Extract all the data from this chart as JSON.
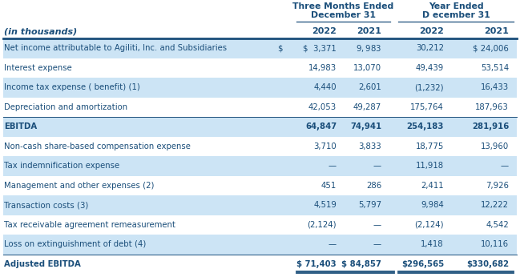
{
  "header_group1_line1": "Three Months Ended",
  "header_group1_line2": "December 31",
  "header_group2_line1": "Year Ended",
  "header_group2_line2": "D ecember 31",
  "col_headers": [
    "2022",
    "2021",
    "2022",
    "2021"
  ],
  "row_label_header": "(in thousands)",
  "rows": [
    {
      "label": "Net income attributable to Agiliti, Inc. and Subsidiaries",
      "vals": [
        "$  3,371",
        "$  9,983 $",
        "30,212",
        "$ 24,006"
      ],
      "val_special": true,
      "vals_raw": [
        "3,371",
        "9,983",
        "30,212",
        "24,006"
      ],
      "dollar_prefix": [
        true,
        true,
        true,
        true
      ],
      "bold": false,
      "shaded": true,
      "top_border": true,
      "label_suffix": " $"
    },
    {
      "label": "Interest expense",
      "vals": [
        "14,983",
        "13,070",
        "49,439",
        "53,514"
      ],
      "bold": false,
      "shaded": false,
      "top_border": false
    },
    {
      "label": "Income tax expense ( benefit) (1)",
      "vals": [
        "4,440",
        "2,601",
        "(1,232)",
        "16,433"
      ],
      "bold": false,
      "shaded": true,
      "top_border": false
    },
    {
      "label": "Depreciation and amortization",
      "vals": [
        "42,053",
        "49,287",
        "175,764",
        "187,963"
      ],
      "bold": false,
      "shaded": false,
      "top_border": false
    },
    {
      "label": "EBITDA",
      "vals": [
        "64,847",
        "74,941",
        "254,183",
        "281,916"
      ],
      "bold": true,
      "shaded": true,
      "top_border": true
    },
    {
      "label": "Non-cash share-based compensation expense",
      "vals": [
        "3,710",
        "3,833",
        "18,775",
        "13,960"
      ],
      "bold": false,
      "shaded": false,
      "top_border": false
    },
    {
      "label": "Tax indemnification expense",
      "vals": [
        "—",
        "—",
        "11,918",
        "—"
      ],
      "bold": false,
      "shaded": true,
      "top_border": false
    },
    {
      "label": "Management and other expenses (2)",
      "vals": [
        "451",
        "286",
        "2,411",
        "7,926"
      ],
      "bold": false,
      "shaded": false,
      "top_border": false
    },
    {
      "label": "Transaction costs (3)",
      "vals": [
        "4,519",
        "5,797",
        "9,984",
        "12,222"
      ],
      "bold": false,
      "shaded": true,
      "top_border": false
    },
    {
      "label": "Tax receivable agreement remeasurement",
      "vals": [
        "(2,124)",
        "—",
        "(2,124)",
        "4,542"
      ],
      "bold": false,
      "shaded": false,
      "top_border": false
    },
    {
      "label": "Loss on extinguishment of debt (4)",
      "vals": [
        "—",
        "—",
        "1,418",
        "10,116"
      ],
      "bold": false,
      "shaded": true,
      "top_border": false
    },
    {
      "label": "Adjusted EBITDA",
      "vals": [
        "$ 71,403",
        "$ 84,857",
        "$296,565",
        "$330,682"
      ],
      "bold": true,
      "shaded": false,
      "top_border": true,
      "double_bottom": true
    }
  ],
  "bg_color": "#FFFFFF",
  "shaded_color": "#cce4f5",
  "text_color": "#1a4e7a",
  "header_text_color": "#1a4e7a"
}
